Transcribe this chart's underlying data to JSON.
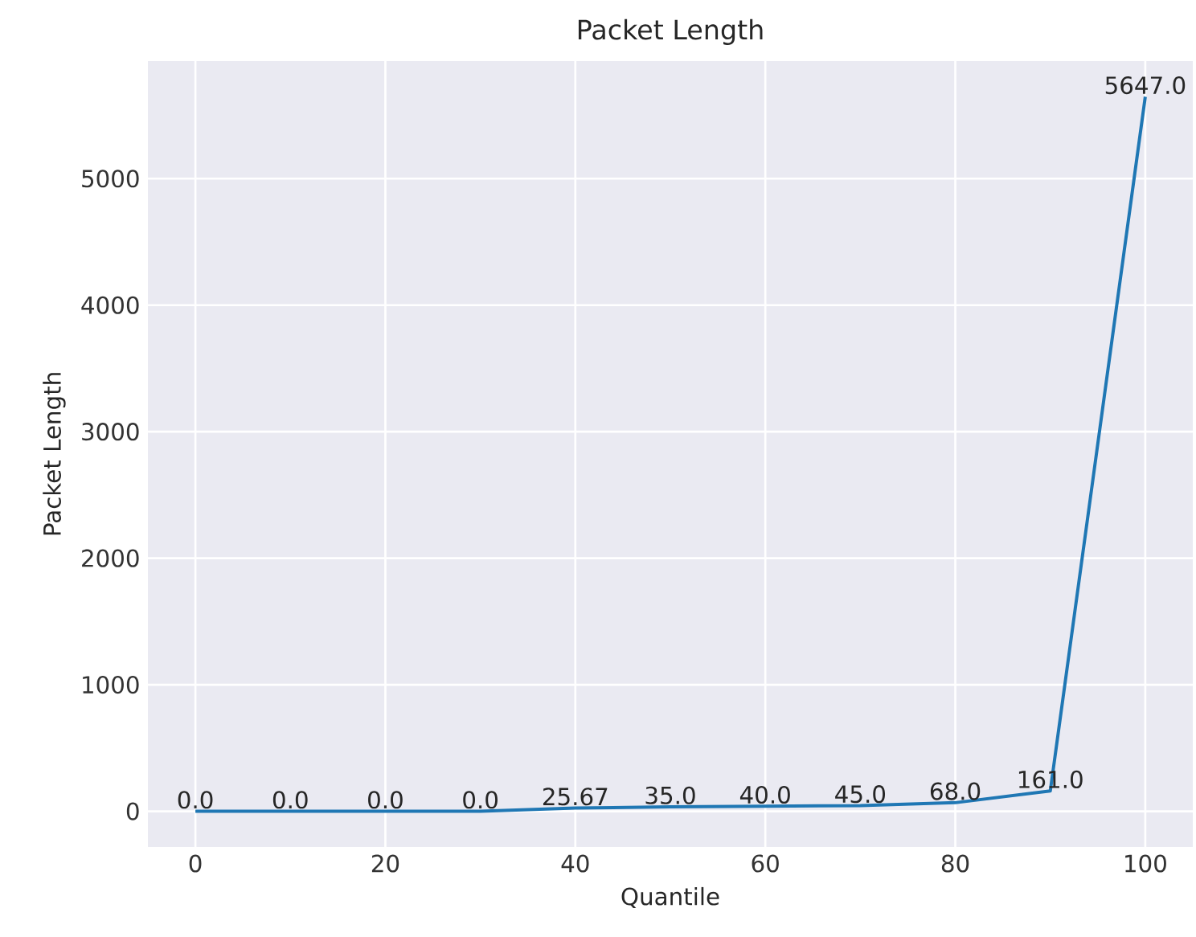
{
  "chart_data": {
    "type": "line",
    "title": "Packet Length",
    "xlabel": "Quantile",
    "ylabel": "Packet Length",
    "x": [
      0,
      10,
      20,
      30,
      40,
      50,
      60,
      70,
      80,
      90,
      100
    ],
    "series": [
      {
        "color": "#1f77b4",
        "values": [
          0,
          0,
          0,
          0,
          25.67,
          35,
          40,
          45,
          68,
          161,
          5647
        ],
        "value_labels": [
          "0.0",
          "0.0",
          "0.0",
          "0.0",
          "25.67",
          "35.0",
          "40.0",
          "45.0",
          "68.0",
          "161.0",
          "5647.0"
        ]
      }
    ],
    "xlim": [
      -5,
      105
    ],
    "ylim": [
      -282,
      5929
    ],
    "xticks": [
      0,
      20,
      40,
      60,
      80,
      100
    ],
    "yticks": [
      0,
      1000,
      2000,
      3000,
      4000,
      5000
    ],
    "grid": true,
    "marker": "none",
    "line_style": "solid"
  }
}
